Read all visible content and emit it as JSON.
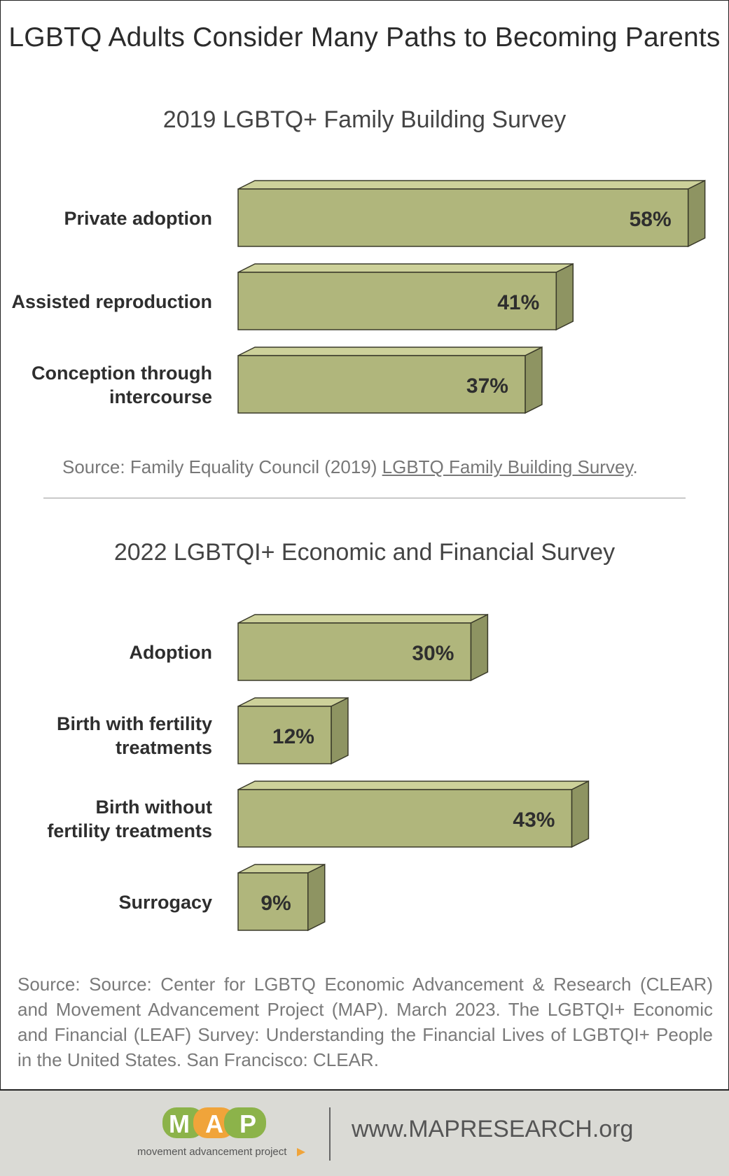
{
  "title": "LGBTQ Adults Consider Many Paths to Becoming Parents",
  "sections": [
    {
      "subtitle": "2019 LGBTQ+ Family Building Survey",
      "source_prefix": "Source: Family Equality Council (2019) ",
      "source_link": "LGBTQ Family Building Survey",
      "source_suffix": "."
    },
    {
      "subtitle": "2022 LGBTQI+ Economic and Financial Survey",
      "source": "Source: Source: Center for LGBTQ Economic Advancement & Research (CLEAR) and Movement Advancement Project (MAP). March 2023. The LGBTQI+ Economic and Financial (LEAF) Survey: Understanding the Financial Lives of LGBTQI+ People in the United States. San Francisco: CLEAR."
    }
  ],
  "chart_data": [
    {
      "type": "bar",
      "orientation": "horizontal",
      "title": "2019 LGBTQ+ Family Building Survey",
      "categories": [
        "Private adoption",
        "Assisted reproduction",
        "Conception through intercourse"
      ],
      "category_lines": [
        [
          "Private adoption"
        ],
        [
          "Assisted reproduction"
        ],
        [
          "Conception through",
          "intercourse"
        ]
      ],
      "values": [
        58,
        41,
        37
      ],
      "value_labels": [
        "58%",
        "41%",
        "37%"
      ],
      "unit": "%"
    },
    {
      "type": "bar",
      "orientation": "horizontal",
      "title": "2022 LGBTQI+ Economic and Financial Survey",
      "categories": [
        "Adoption",
        "Birth with fertility treatments",
        "Birth without fertility treatments",
        "Surrogacy"
      ],
      "category_lines": [
        [
          "Adoption"
        ],
        [
          "Birth with fertility",
          "treatments"
        ],
        [
          "Birth without",
          "fertility treatments"
        ],
        [
          "Surrogacy"
        ]
      ],
      "values": [
        30,
        12,
        43,
        9
      ],
      "value_labels": [
        "30%",
        "12%",
        "43%",
        "9%"
      ],
      "unit": "%"
    }
  ],
  "colors": {
    "bar_front": "#b0b67c",
    "bar_top": "#cdd19a",
    "bar_side": "#8e9462",
    "bar_stroke": "#3a3a2a"
  },
  "footer": {
    "logo_letters": [
      "M",
      "A",
      "P"
    ],
    "logo_tagline": "movement advancement project",
    "logo_colors": [
      "#8cb34a",
      "#f0a43a",
      "#8cb34a"
    ],
    "url": "www.MAPRESEARCH.org"
  }
}
